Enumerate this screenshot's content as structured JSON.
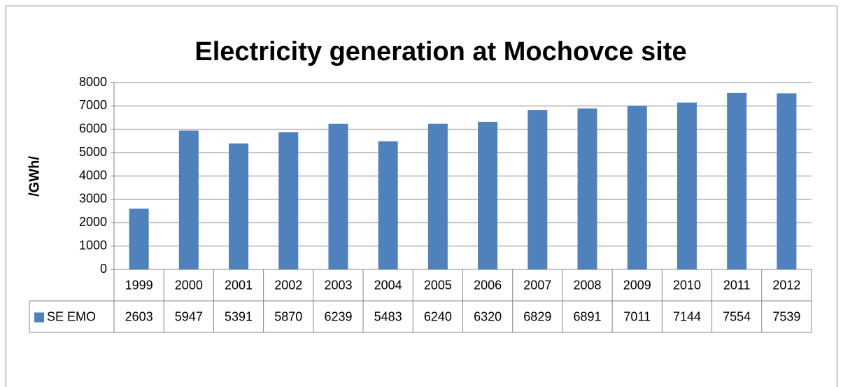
{
  "chart_data": {
    "type": "bar",
    "title": "Electricity generation at Mochovce site",
    "y_label": "/GWh/",
    "categories": [
      "1999",
      "2000",
      "2001",
      "2002",
      "2003",
      "2004",
      "2005",
      "2006",
      "2007",
      "2008",
      "2009",
      "2010",
      "2011",
      "2012"
    ],
    "series": [
      {
        "name": "SE EMO",
        "color": "#4f81bd",
        "values": [
          2603,
          5947,
          5391,
          5870,
          6239,
          5483,
          6240,
          6320,
          6829,
          6891,
          7011,
          7144,
          7554,
          7539
        ]
      }
    ],
    "ylim": [
      0,
      8000
    ],
    "yticks": [
      0,
      1000,
      2000,
      3000,
      4000,
      5000,
      6000,
      7000,
      8000
    ],
    "grid": true
  }
}
